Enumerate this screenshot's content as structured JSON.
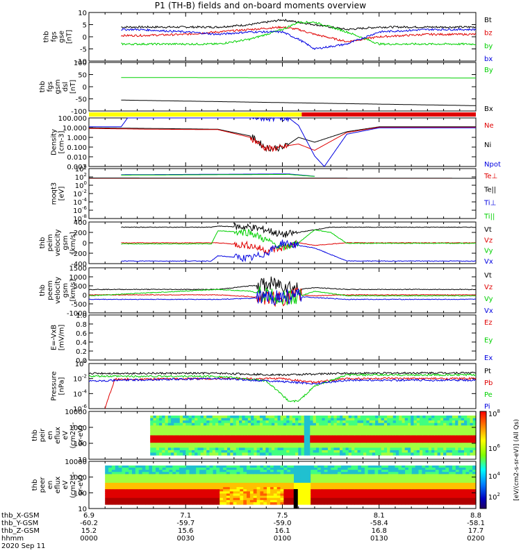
{
  "title": "P1 (TH-B) fields and on-board moments overview",
  "colors": {
    "black": "#000000",
    "red": "#e00000",
    "green": "#00d000",
    "blue": "#0000e0",
    "yellow": "#ffff00",
    "barred": "#e00000"
  },
  "panels": [
    {
      "id": "fgs",
      "ylabel": [
        "thb",
        "fgs",
        "gse",
        "[nT]"
      ],
      "ticks": [
        "10",
        "5",
        "0",
        "-5",
        "-10"
      ],
      "legend": [
        "Bt",
        "bz",
        "by",
        "bx"
      ],
      "legend_colors": [
        "black",
        "red",
        "green",
        "blue"
      ]
    },
    {
      "id": "fgs_dsl",
      "ylabel": [
        "thb",
        "fgs",
        "gsm",
        "dsl",
        "[nT]"
      ],
      "ticks": [
        "100",
        "50",
        "0",
        "-50",
        "-100"
      ],
      "legend": [
        "By",
        "Bx"
      ],
      "legend_colors": [
        "green",
        "black"
      ]
    },
    {
      "id": "density",
      "ylabel": [
        "Density",
        "[cm^-3]"
      ],
      "ticks": [
        "100.000",
        "10.000",
        "1.000",
        "0.100",
        "0.010",
        "0.001"
      ],
      "legend": [
        "Ne",
        "Ni",
        "Npot"
      ],
      "legend_colors": [
        "red",
        "black",
        "blue"
      ]
    },
    {
      "id": "temp",
      "ylabel": [
        "moqt3",
        "[eV]"
      ],
      "ticks": [
        "10^4",
        "10^2",
        "10^0",
        "10^-2",
        "10^-4",
        "10^-6",
        "10^-8"
      ],
      "legend": [
        "Te⊥",
        "Te||",
        "Ti⊥",
        "Ti||"
      ],
      "legend_colors": [
        "red",
        "black",
        "blue",
        "green"
      ]
    },
    {
      "id": "vi",
      "ylabel": [
        "thb",
        "peim",
        "velocity",
        "gsm",
        "[km/s]"
      ],
      "ticks": [
        "400",
        "200",
        "0",
        "-200",
        "-400"
      ],
      "legend": [
        "Vt",
        "Vz",
        "Vy",
        "Vx"
      ],
      "legend_colors": [
        "black",
        "red",
        "green",
        "blue"
      ]
    },
    {
      "id": "ve",
      "ylabel": [
        "thb",
        "peem",
        "velocity",
        "gsm",
        "[km/s]"
      ],
      "ticks": [
        "1500",
        "1000",
        "500",
        "0",
        "-500",
        "-1000"
      ],
      "legend": [
        "Vt",
        "Vz",
        "Vy",
        "Vx"
      ],
      "legend_colors": [
        "black",
        "red",
        "green",
        "blue"
      ]
    },
    {
      "id": "efield",
      "ylabel": [
        "E=-VxB",
        "[mV/m]"
      ],
      "ticks": [
        "1.0",
        "0.8",
        "0.6",
        "0.4",
        "0.2",
        "0.0"
      ],
      "legend": [
        "Ez",
        "Ey",
        "Ex"
      ],
      "legend_colors": [
        "red",
        "green",
        "blue"
      ]
    },
    {
      "id": "pressure",
      "ylabel": [
        "Pressure",
        "[nPa]"
      ],
      "ticks": [
        "10^0",
        "10^-2",
        "10^-4",
        "10^-6"
      ],
      "legend": [
        "Pt",
        "Pb",
        "Pe",
        "Pi"
      ],
      "legend_colors": [
        "black",
        "red",
        "green",
        "blue"
      ]
    },
    {
      "id": "peir",
      "ylabel": [
        "thb",
        "peir",
        "en",
        "eflux",
        "eV",
        "(cm^2-s-",
        "sr-eV)"
      ],
      "ticks": [
        "10000",
        "1000",
        "100",
        "10"
      ]
    },
    {
      "id": "peer",
      "ylabel": [
        "thb",
        "peer",
        "en",
        "eflux",
        "eV",
        "(cm^2-s-",
        "sr-eV)"
      ],
      "ticks": [
        "10000",
        "1000",
        "100",
        "10"
      ]
    }
  ],
  "colorbar": {
    "ticks": [
      "10^8",
      "10^6",
      "10^4",
      "10^2"
    ],
    "label": "[eV/(cm^2-s-sr-eV)] (All Qs)"
  },
  "xaxis": {
    "rows": [
      {
        "label": "thb_X-GSM",
        "values": [
          "6.9",
          "7.1",
          "7.5",
          "8.1",
          "8.8"
        ]
      },
      {
        "label": "thb_Y-GSM",
        "values": [
          "-60.2",
          "-59.7",
          "-59.0",
          "-58.4",
          "-58.1"
        ]
      },
      {
        "label": "thb_Z-GSM",
        "values": [
          "15.2",
          "15.6",
          "16.1",
          "16.8",
          "17.7"
        ]
      },
      {
        "label": "hhmm",
        "values": [
          "0000",
          "0030",
          "0100",
          "0130",
          "0200"
        ]
      }
    ],
    "date": "2020 Sep 11",
    "x_tick_minutes": [
      0,
      30,
      60,
      90,
      120
    ]
  },
  "chart_data": {
    "type": "line",
    "title": "P1 (TH-B) fields and on-board moments overview",
    "x_unit": "minutes since 0000 UT 2020 Sep 11",
    "xlim": [
      0,
      120
    ],
    "panels": [
      {
        "name": "fgs gse",
        "ylim": [
          -10,
          10
        ],
        "series": [
          {
            "name": "Bt",
            "x": [
              0,
              15,
              30,
              40,
              50,
              60,
              65,
              70,
              80,
              90,
              105,
              120
            ],
            "values": [
              4,
              4,
              4,
              4,
              5,
              7,
              6,
              5,
              3,
              4,
              4,
              4
            ]
          },
          {
            "name": "bz",
            "x": [
              0,
              15,
              30,
              40,
              50,
              60,
              65,
              70,
              80,
              90,
              105,
              120
            ],
            "values": [
              0.5,
              0.5,
              1,
              2,
              3,
              4,
              3,
              1,
              -2,
              0,
              1,
              1
            ]
          },
          {
            "name": "by",
            "x": [
              0,
              15,
              30,
              40,
              50,
              60,
              65,
              70,
              80,
              90,
              105,
              120
            ],
            "values": [
              -3,
              -3,
              -3,
              -3,
              -1,
              3,
              6,
              6,
              2,
              -3,
              -3,
              -3
            ]
          },
          {
            "name": "bx",
            "x": [
              0,
              15,
              30,
              40,
              50,
              60,
              65,
              70,
              80,
              90,
              105,
              120
            ],
            "values": [
              3,
              3,
              2,
              1,
              2,
              2,
              -1,
              -5,
              -3,
              2,
              3,
              3
            ]
          }
        ]
      },
      {
        "name": "fgs gsm dsl",
        "ylim": [
          -100,
          100
        ],
        "series": [
          {
            "name": "By",
            "x": [
              0,
              120
            ],
            "values": [
              38,
              36
            ]
          },
          {
            "name": "Bx",
            "x": [
              0,
              120
            ],
            "values": [
              -55,
              -78
            ]
          }
        ]
      },
      {
        "name": "Density",
        "ylog": true,
        "ylim": [
          0.0005,
          500
        ],
        "series": [
          {
            "name": "Ni",
            "x": [
              0,
              20,
              40,
              50,
              55,
              60,
              62,
              65,
              70,
              80,
              90,
              120
            ],
            "values": [
              30,
              25,
              20,
              3,
              0.1,
              0.1,
              0.3,
              2,
              0.5,
              10,
              40,
              40
            ]
          },
          {
            "name": "Ne",
            "x": [
              0,
              20,
              40,
              50,
              55,
              60,
              62,
              65,
              70,
              80,
              90,
              120
            ],
            "values": [
              25,
              20,
              18,
              2,
              0.08,
              0.1,
              0.2,
              0.3,
              0.05,
              8,
              35,
              35
            ]
          },
          {
            "name": "Npot",
            "x": [
              0,
              10,
              12,
              62,
              65,
              70,
              73,
              80,
              90,
              120
            ],
            "values": [
              40,
              40,
              500,
              500,
              60,
              0.01,
              0.0005,
              5,
              30,
              30
            ]
          }
        ]
      },
      {
        "name": "moqt3",
        "ylog": true,
        "ylim": [
          1e-08,
          100000.0
        ],
        "series": [
          {
            "name": "Te⊥",
            "x": [
              0,
              120
            ],
            "values": [
              300,
              300
            ]
          },
          {
            "name": "Te||",
            "x": [
              0,
              120
            ],
            "values": [
              350,
              300
            ]
          },
          {
            "name": "Ti⊥",
            "x": [
              10,
              62,
              70
            ],
            "values": [
              2500,
              4000,
              1000
            ]
          },
          {
            "name": "Ti||",
            "x": [
              10,
              62,
              70
            ],
            "values": [
              2000,
              3000,
              900
            ]
          }
        ]
      },
      {
        "name": "peim velocity",
        "ylim": [
          -400,
          400
        ],
        "series": [
          {
            "name": "Vt",
            "x": [
              0,
              38,
              40,
              50,
              55,
              60,
              65,
              70,
              75,
              80,
              120
            ],
            "values": [
              300,
              300,
              320,
              300,
              250,
              150,
              200,
              250,
              300,
              300,
              300
            ]
          },
          {
            "name": "Vz",
            "x": [
              0,
              40,
              50,
              55,
              60,
              65,
              70,
              80,
              120
            ],
            "values": [
              0,
              0,
              -50,
              -150,
              -100,
              0,
              -50,
              0,
              0
            ]
          },
          {
            "name": "Vy",
            "x": [
              0,
              38,
              40,
              50,
              55,
              60,
              65,
              70,
              75,
              80,
              120
            ],
            "values": [
              -20,
              -20,
              230,
              200,
              50,
              -100,
              0,
              250,
              200,
              -10,
              -10
            ]
          },
          {
            "name": "Vx",
            "x": [
              0,
              38,
              40,
              50,
              55,
              60,
              65,
              70,
              80,
              120
            ],
            "values": [
              -350,
              -350,
              -250,
              -300,
              -200,
              0,
              -50,
              -100,
              -350,
              -350
            ]
          }
        ]
      },
      {
        "name": "peem velocity",
        "ylim": [
          -1000,
          1500
        ],
        "series": [
          {
            "name": "Vt",
            "x": [
              0,
              40,
              50,
              60,
              65,
              70,
              80,
              120
            ],
            "values": [
              300,
              300,
              500,
              600,
              300,
              400,
              300,
              300
            ]
          },
          {
            "name": "Vz",
            "x": [
              0,
              40,
              50,
              60,
              65,
              70,
              80,
              120
            ],
            "values": [
              0,
              0,
              -100,
              -200,
              0,
              -50,
              0,
              0
            ]
          },
          {
            "name": "Vy",
            "x": [
              0,
              40,
              50,
              60,
              65,
              70,
              80,
              120
            ],
            "values": [
              -50,
              300,
              200,
              -200,
              -100,
              200,
              -50,
              -50
            ]
          },
          {
            "name": "Vx",
            "x": [
              0,
              40,
              50,
              60,
              65,
              70,
              80,
              120
            ],
            "values": [
              -250,
              -250,
              -200,
              -100,
              -100,
              -150,
              -250,
              -250
            ]
          }
        ]
      },
      {
        "name": "E=-VxB",
        "ylim": [
          0,
          1
        ],
        "series": []
      },
      {
        "name": "Pressure",
        "ylog": true,
        "ylim": [
          1e-06,
          1
        ],
        "series": [
          {
            "name": "Pt",
            "x": [
              0,
              40,
              60,
              70,
              80,
              120
            ],
            "values": [
              0.05,
              0.05,
              0.03,
              0.04,
              0.05,
              0.06
            ]
          },
          {
            "name": "Pb",
            "x": [
              0,
              5,
              8,
              40,
              60,
              70,
              80,
              120
            ],
            "values": [
              0,
              1e-05,
              0.008,
              0.01,
              0.01,
              0.003,
              0.01,
              0.01
            ]
          },
          {
            "name": "Pe",
            "x": [
              0,
              40,
              55,
              62,
              65,
              70,
              80,
              120
            ],
            "values": [
              0.02,
              0.02,
              0.005,
              1e-05,
              1e-05,
              0.001,
              0.03,
              0.03
            ]
          },
          {
            "name": "Pi",
            "x": [
              0,
              40,
              60,
              70,
              80,
              120
            ],
            "values": [
              0.005,
              0.01,
              0.004,
              0.002,
              0.006,
              0.006
            ]
          }
        ]
      }
    ]
  }
}
